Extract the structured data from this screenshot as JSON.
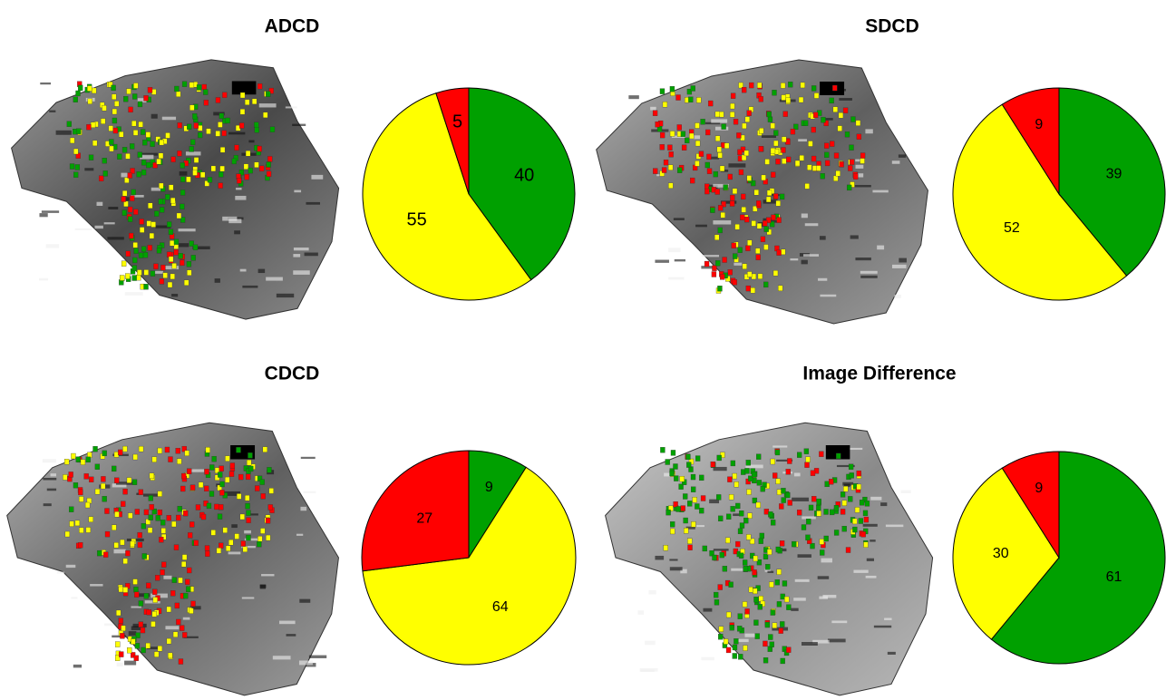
{
  "chart_data": [
    {
      "type": "pie",
      "title": "ADCD",
      "values": [
        40,
        55,
        5
      ],
      "colors": [
        "#00a000",
        "#ffff00",
        "#ff0000"
      ]
    },
    {
      "type": "pie",
      "title": "SDCD",
      "values": [
        39,
        52,
        9
      ],
      "colors": [
        "#00a000",
        "#ffff00",
        "#ff0000"
      ]
    },
    {
      "type": "pie",
      "title": "CDCD",
      "values": [
        9,
        64,
        27
      ],
      "colors": [
        "#00a000",
        "#ffff00",
        "#ff0000"
      ]
    },
    {
      "type": "pie",
      "title": "Image Difference",
      "values": [
        61,
        30,
        9
      ],
      "colors": [
        "#00a000",
        "#ffff00",
        "#ff0000"
      ]
    }
  ]
}
